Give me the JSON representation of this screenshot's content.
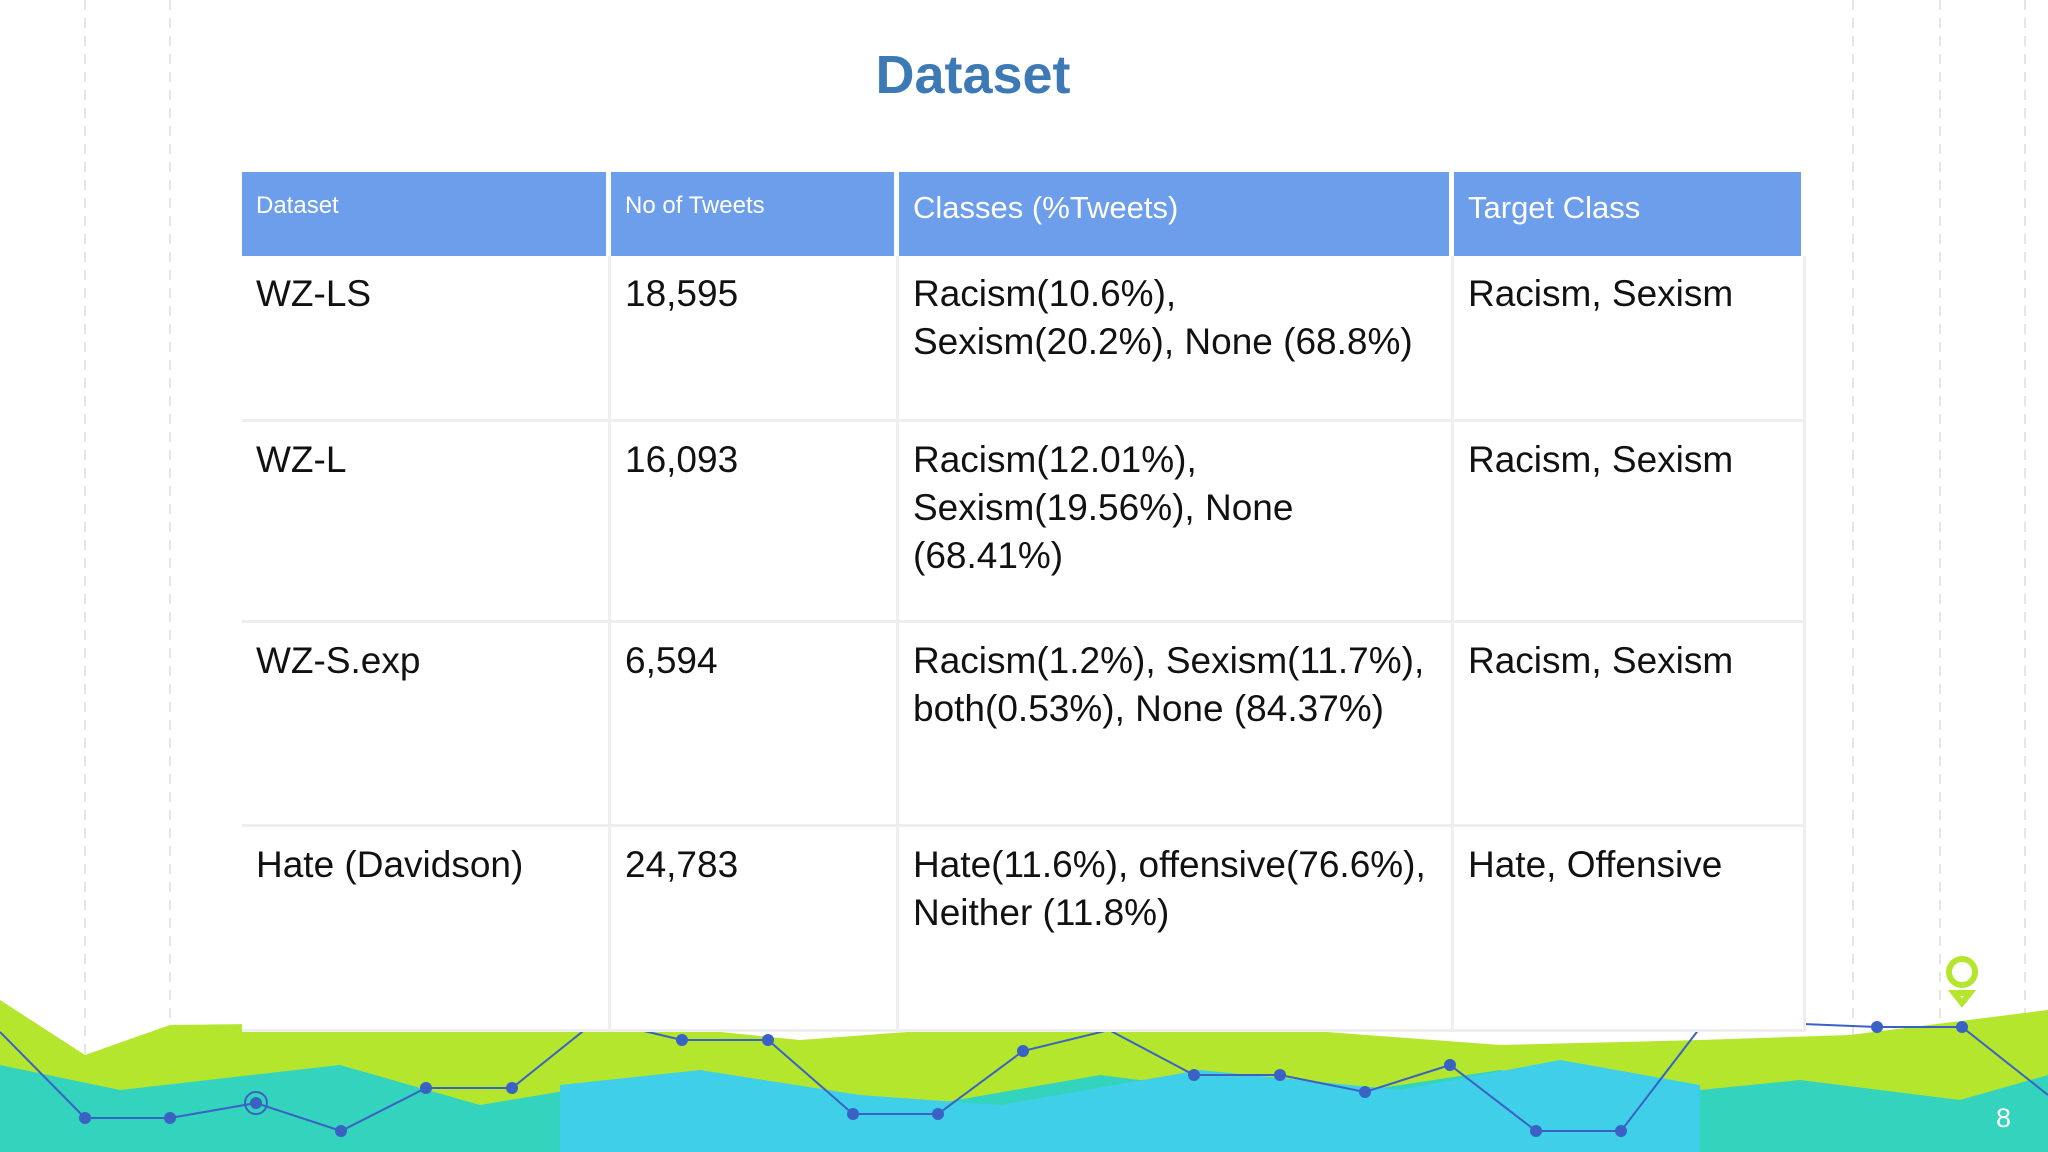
{
  "title": "Dataset",
  "table": {
    "headers": [
      "Dataset",
      "No of Tweets",
      "Classes (%Tweets)",
      "Target Class"
    ],
    "rows": [
      [
        "WZ-LS",
        "18,595",
        "Racism(10.6%), Sexism(20.2%), None (68.8%)",
        "Racism, Sexism"
      ],
      [
        "WZ-L",
        "16,093",
        "Racism(12.01%), Sexism(19.56%), None (68.41%)",
        "Racism, Sexism"
      ],
      [
        "WZ-S.exp",
        "6,594",
        "Racism(1.2%), Sexism(11.7%),  both(0.53%), None (84.37%)",
        "Racism, Sexism"
      ],
      [
        "Hate (Davidson)",
        "24,783",
        "Hate(11.6%), offensive(76.6%),  Neither (11.8%)",
        "Hate, Offensive"
      ]
    ]
  },
  "page_number": "8"
}
